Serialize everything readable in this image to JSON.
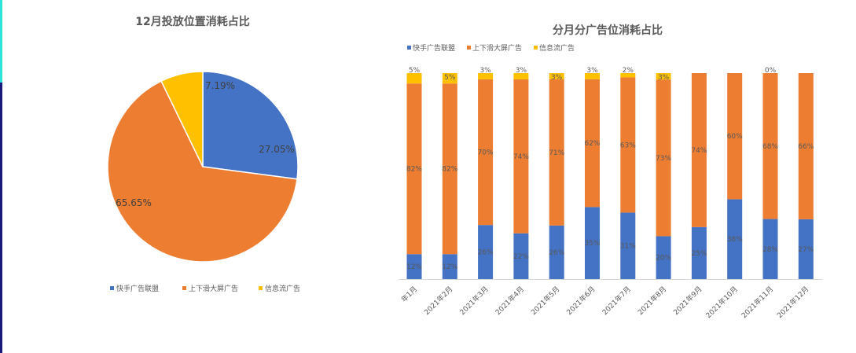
{
  "chart_data": [
    {
      "type": "pie",
      "title": "12月投放位置消耗占比",
      "categories": [
        "快手广告联盟",
        "上下滑大屏广告",
        "信息流广告"
      ],
      "values": [
        27.05,
        65.65,
        7.19
      ],
      "labels": [
        "27.05%",
        "65.65%",
        "7.19%"
      ],
      "colors": [
        "#4472c4",
        "#ed7d31",
        "#ffc000"
      ],
      "legend": "bottom"
    },
    {
      "type": "bar",
      "stacked": true,
      "title": "分月分广告位消耗占比",
      "categories": [
        "年1月",
        "2021年2月",
        "2021年3月",
        "2021年4月",
        "2021年5月",
        "2021年6月",
        "2021年7月",
        "2021年8月",
        "2021年9月",
        "2021年10月",
        "2021年11月",
        "2021年12月"
      ],
      "series": [
        {
          "name": "快手广告联盟",
          "color": "#4472c4",
          "values": [
            12,
            12,
            26,
            22,
            26,
            35,
            31,
            20,
            25,
            38,
            28,
            27
          ]
        },
        {
          "name": "上下滑大屏广告",
          "color": "#ed7d31",
          "values": [
            82,
            82,
            70,
            74,
            71,
            62,
            63,
            73,
            74,
            60,
            68,
            66
          ]
        },
        {
          "name": "信息流广告",
          "color": "#ffc000",
          "values": [
            5,
            5,
            3,
            3,
            3,
            3,
            2,
            3,
            null,
            null,
            0,
            null
          ]
        }
      ],
      "value_format": "percent",
      "legend": "top-left",
      "grid": false
    }
  ]
}
